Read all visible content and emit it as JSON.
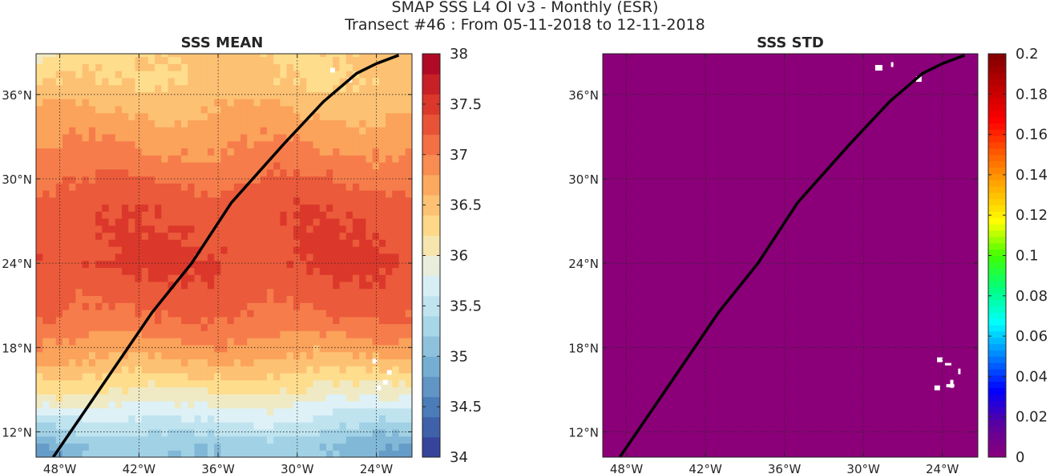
{
  "figure": {
    "title_line1": "SMAP SSS L4 OI v3 - Monthly (ESR)",
    "title_line2": "Transect #46 : From 05-11-2018 to 12-11-2018"
  },
  "chart_data": [
    {
      "type": "heatmap",
      "title": "SSS MEAN",
      "variable": "sea surface salinity mean",
      "x_ticks": [
        "48°W",
        "42°W",
        "36°W",
        "30°W",
        "24°W"
      ],
      "y_ticks": [
        "12°N",
        "18°N",
        "24°N",
        "30°N",
        "36°N"
      ],
      "lon_range": [
        -49.8,
        -21.3
      ],
      "lat_range": [
        10.2,
        38.9
      ],
      "grid": true,
      "colorbar": {
        "colormap": "RdYlBu_r",
        "range": [
          34,
          38
        ],
        "ticks": [
          "34",
          "34.5",
          "35",
          "35.5",
          "36",
          "36.5",
          "37",
          "37.5",
          "38"
        ],
        "colors": [
          "#313695",
          "#4575b4",
          "#74add1",
          "#abd9e9",
          "#e0f3f8",
          "#fee090",
          "#fdae61",
          "#f46d43",
          "#d73027",
          "#a50026"
        ]
      },
      "field_summary": [
        {
          "lat": 11,
          "sss": 35.2
        },
        {
          "lat": 14,
          "sss": 35.9
        },
        {
          "lat": 17,
          "sss": 36.6
        },
        {
          "lat": 20,
          "sss": 37.1
        },
        {
          "lat": 24,
          "sss": 37.4
        },
        {
          "lat": 28,
          "sss": 37.3
        },
        {
          "lat": 31,
          "sss": 37.0
        },
        {
          "lat": 34,
          "sss": 36.7
        },
        {
          "lat": 37,
          "sss": 36.4
        }
      ],
      "transect": {
        "lon": [
          -48.5,
          -45,
          -41,
          -38,
          -35,
          -31,
          -28,
          -25.5,
          -24,
          -22.3
        ],
        "lat": [
          10.2,
          15,
          20.5,
          24,
          28.3,
          32.5,
          35.5,
          37.5,
          38.2,
          38.8
        ]
      }
    },
    {
      "type": "heatmap",
      "title": "SSS STD",
      "variable": "sea surface salinity standard deviation",
      "x_ticks": [
        "48°W",
        "42°W",
        "36°W",
        "30°W",
        "24°W"
      ],
      "y_ticks": [
        "12°N",
        "18°N",
        "24°N",
        "30°N",
        "36°N"
      ],
      "lon_range": [
        -49.8,
        -21.3
      ],
      "lat_range": [
        10.2,
        38.9
      ],
      "grid": true,
      "field_value": 0,
      "field_color": "#8b0079",
      "colorbar": {
        "colormap": "jet",
        "range": [
          0,
          0.2
        ],
        "ticks": [
          "0",
          "0.02",
          "0.04",
          "0.06",
          "0.08",
          "0.1",
          "0.12",
          "0.14",
          "0.16",
          "0.18",
          "0.2"
        ],
        "colors": [
          "#8b0079",
          "#5a00a0",
          "#0000ff",
          "#0080ff",
          "#00ffff",
          "#00ff80",
          "#40ff00",
          "#ffff00",
          "#ffb000",
          "#ff6000",
          "#ff0000",
          "#c00000",
          "#800000"
        ]
      },
      "transect": {
        "lon": [
          -48.5,
          -45,
          -41,
          -38,
          -35,
          -31,
          -28,
          -25.5,
          -24,
          -22.3
        ],
        "lat": [
          10.2,
          15,
          20.5,
          24,
          28.3,
          32.5,
          35.5,
          37.5,
          38.2,
          38.8
        ]
      }
    }
  ]
}
